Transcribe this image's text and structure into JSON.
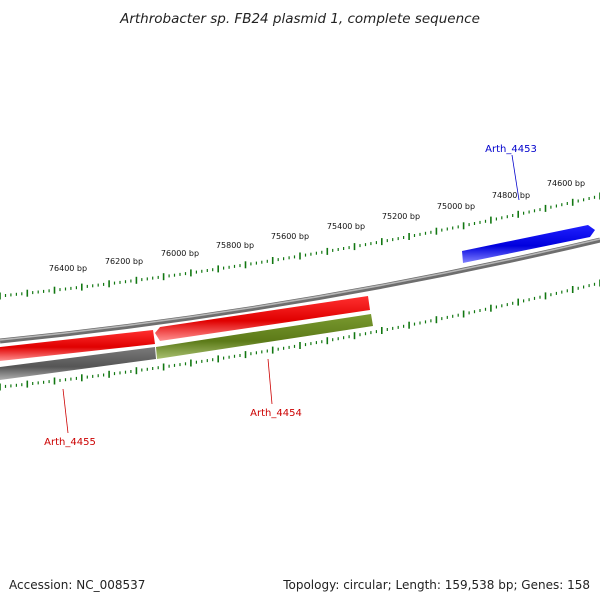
{
  "title": "Arthrobacter sp. FB24 plasmid 1, complete sequence",
  "footer": {
    "accession_label": "Accession:",
    "accession": "NC_008537",
    "topology_label": "Topology:",
    "topology": "circular",
    "length_label": "Length:",
    "length": "159,538 bp",
    "genes_label": "Genes:",
    "genes": "158"
  },
  "ticks": [
    "74600 bp",
    "74800 bp",
    "75000 bp",
    "75200 bp",
    "75400 bp",
    "75600 bp",
    "75800 bp",
    "76000 bp",
    "76200 bp",
    "76400 bp"
  ],
  "genes": [
    {
      "name": "Arth_4453",
      "color": "#0000cc",
      "strand": "forward"
    },
    {
      "name": "Arth_4454",
      "color": "#cc0000",
      "strand": "reverse"
    },
    {
      "name": "Arth_4455",
      "color": "#cc0000",
      "strand": "reverse"
    }
  ],
  "colors": {
    "backbone": "#808080",
    "tick": "#117711",
    "forward_gene": "#0000ee",
    "reverse_gene": "#ee0000",
    "feature_green": "#6b8e23",
    "feature_gray": "#606060"
  }
}
